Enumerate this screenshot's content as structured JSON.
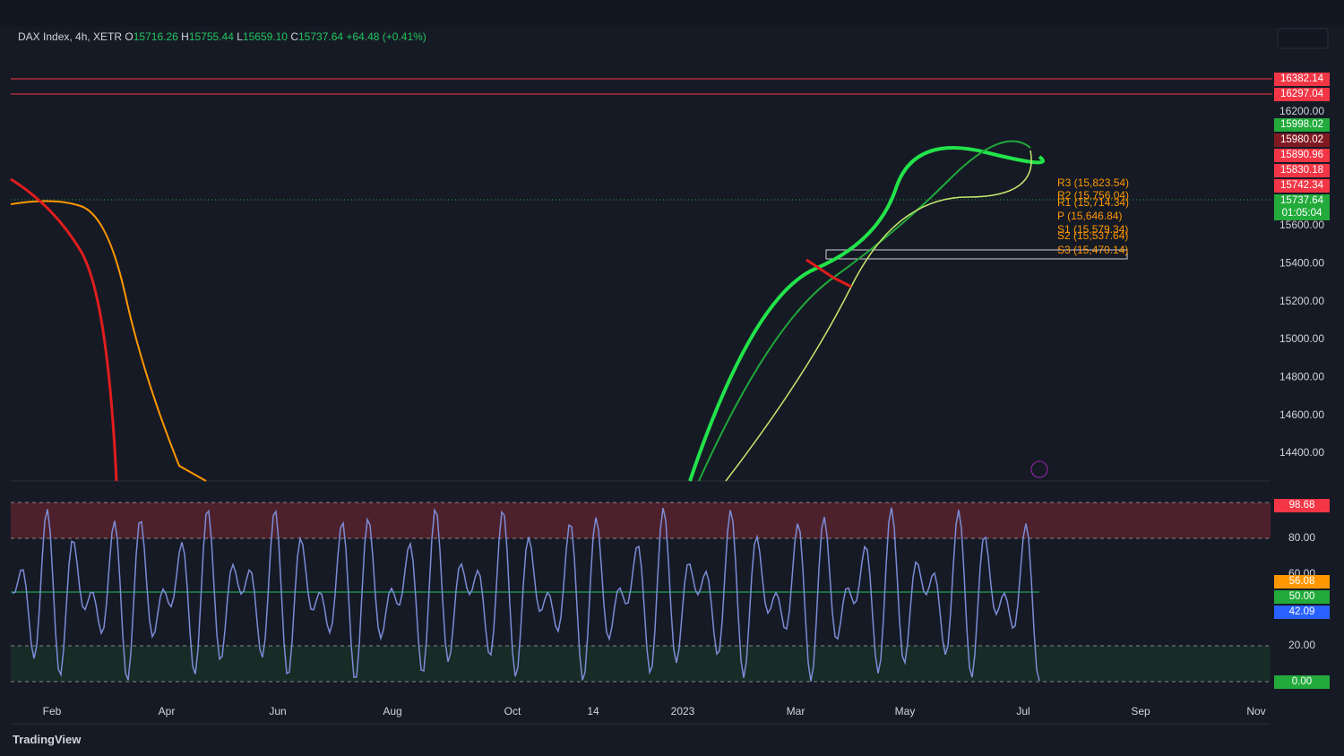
{
  "header": {
    "symbol": "DAX Index, 4h, XETR",
    "open_label": "O",
    "open": "15716.26",
    "high_label": "H",
    "high": "15755.44",
    "low_label": "L",
    "low": "15659.10",
    "close_label": "C",
    "close": "15737.64",
    "change": "+64.48 (+0.41%)"
  },
  "price_axis": [
    "16200.00",
    "15600.00",
    "15400.00",
    "15200.00",
    "15000.00",
    "14800.00",
    "14600.00",
    "14400.00"
  ],
  "price_badges": [
    {
      "label": "16382.14",
      "color": "#f23645"
    },
    {
      "label": "16297.04",
      "color": "#f23645"
    },
    {
      "label": "15998.02",
      "color": "#22ab3b"
    },
    {
      "label": "15980.02",
      "color": "#801922"
    },
    {
      "label": "15890.96",
      "color": "#f23645"
    },
    {
      "label": "15830.18",
      "color": "#f23645"
    },
    {
      "label": "15742.34",
      "color": "#f23645"
    },
    {
      "label": "15737.64",
      "color": "#22ab3b"
    },
    {
      "label": "01:05:04",
      "color": "#22ab3b"
    }
  ],
  "pivots": [
    "R3 (15,823.54)",
    "R2 (15,756.04)",
    "R1 (15,714.34)",
    "P (15,646.84)",
    "S1 (15,579.34)",
    "S2 (15,537.64)",
    "S3 (15,470.14)"
  ],
  "oscillator_axis": [
    "80.00",
    "60.00",
    "20.00"
  ],
  "oscillator_badges": [
    {
      "label": "98.68",
      "color": "#f23645"
    },
    {
      "label": "56.08",
      "color": "#ff9800"
    },
    {
      "label": "50.00",
      "color": "#22ab3b"
    },
    {
      "label": "42.09",
      "color": "#2962ff"
    },
    {
      "label": "0.00",
      "color": "#22ab3b"
    }
  ],
  "time_axis": [
    "Feb",
    "Apr",
    "Jun",
    "Aug",
    "Oct",
    "14",
    "2023",
    "Mar",
    "May",
    "Jul",
    "Sep",
    "Nov"
  ],
  "brand": "TradingView"
}
